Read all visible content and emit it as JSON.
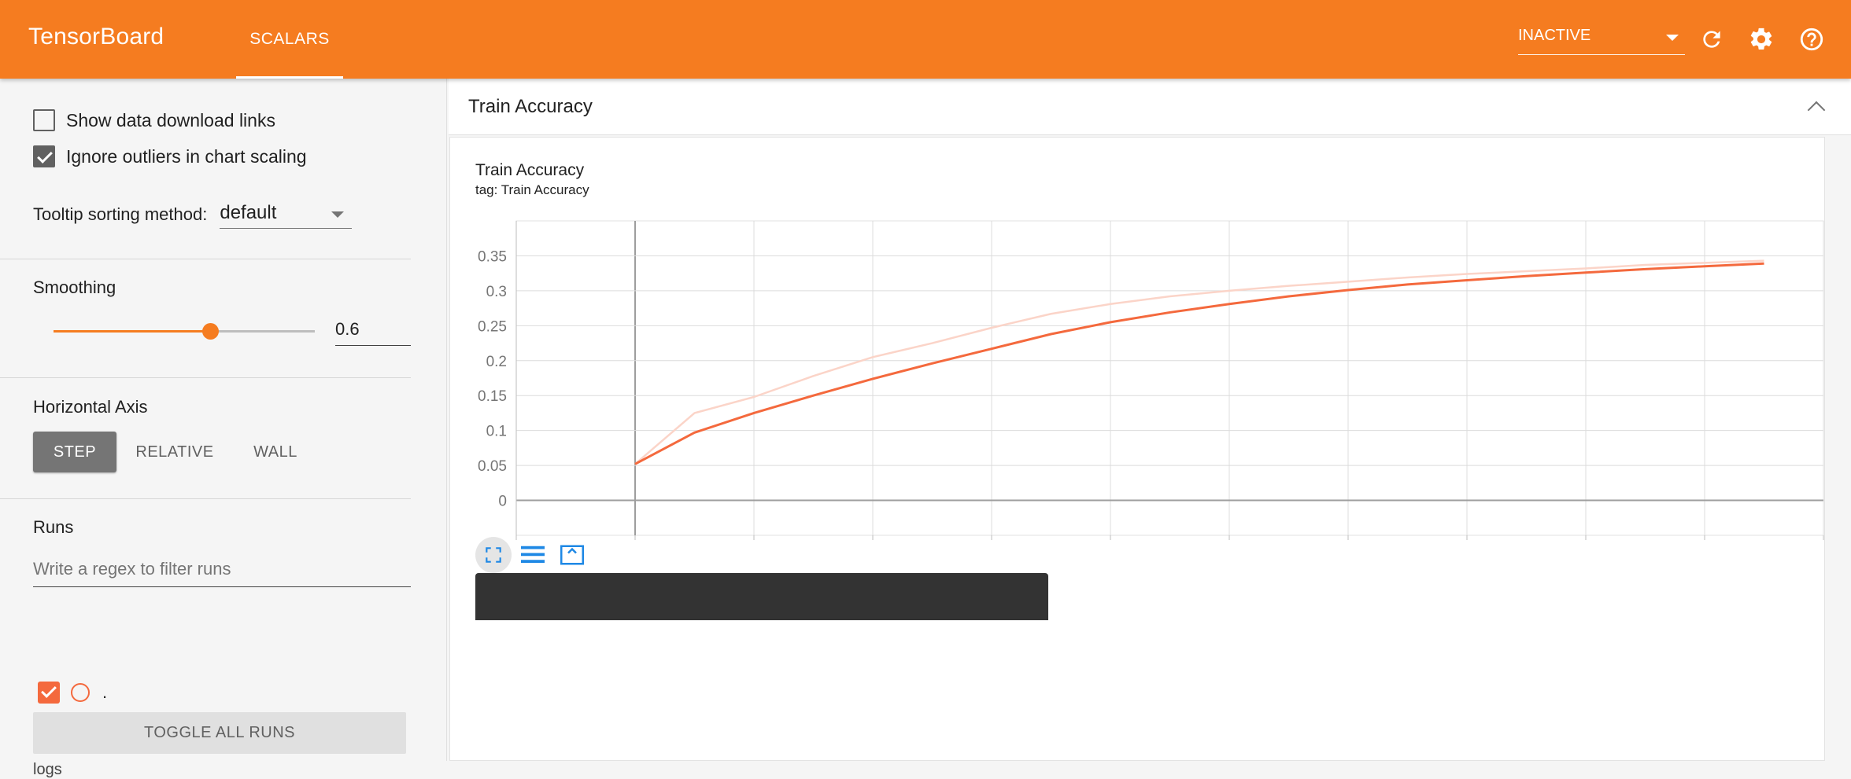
{
  "header": {
    "brand": "TensorBoard",
    "tab": "SCALARS",
    "status": "INACTIVE",
    "colors": {
      "bar": "#f57c20"
    }
  },
  "sidebar": {
    "download_links_label": "Show data download links",
    "download_links_checked": false,
    "ignore_outliers_label": "Ignore outliers in chart scaling",
    "ignore_outliers_checked": true,
    "tooltip_label": "Tooltip sorting method:",
    "tooltip_value": "default",
    "smoothing_label": "Smoothing",
    "smoothing_value": "0.6",
    "horizontal_axis_label": "Horizontal Axis",
    "axis_options": [
      "STEP",
      "RELATIVE",
      "WALL"
    ],
    "axis_selected": "STEP",
    "runs_label": "Runs",
    "regex_placeholder": "Write a regex to filter runs",
    "run_name": ".",
    "toggle_label": "TOGGLE ALL RUNS",
    "logdir": "logs"
  },
  "pane": {
    "title": "Train Accuracy"
  },
  "card": {
    "title": "Train Accuracy",
    "subtitle": "tag: Train Accuracy"
  },
  "chart_data": {
    "type": "line",
    "title": "Train Accuracy",
    "subtitle": "tag: Train Accuracy",
    "xlabel": "",
    "ylabel": "",
    "xlim": [
      -2,
      20
    ],
    "ylim": [
      -0.05,
      0.4
    ],
    "x_ticks": [
      0,
      2,
      4,
      6,
      8,
      10,
      12,
      14,
      16,
      18
    ],
    "y_ticks": [
      0,
      0.05,
      0.1,
      0.15,
      0.2,
      0.25,
      0.3,
      0.35
    ],
    "y_tick_labels": [
      "0",
      "0.05",
      "0.1",
      "0.15",
      "0.2",
      "0.25",
      "0.3",
      "0.35"
    ],
    "grid": true,
    "x": [
      0,
      1,
      2,
      3,
      4,
      5,
      6,
      7,
      8,
      9,
      10,
      11,
      12,
      13,
      14,
      15,
      16,
      17,
      18,
      19
    ],
    "series": [
      {
        "role": "raw",
        "color": "#fbd4c8",
        "values": [
          0.052,
          0.125,
          0.148,
          0.178,
          0.205,
          0.225,
          0.247,
          0.267,
          0.281,
          0.292,
          0.3,
          0.307,
          0.313,
          0.319,
          0.324,
          0.328,
          0.332,
          0.337,
          0.34,
          0.343
        ]
      },
      {
        "role": "smoothed",
        "color": "#f4693d",
        "values": [
          0.052,
          0.097,
          0.125,
          0.15,
          0.174,
          0.196,
          0.217,
          0.238,
          0.255,
          0.269,
          0.281,
          0.292,
          0.301,
          0.309,
          0.315,
          0.321,
          0.326,
          0.331,
          0.335,
          0.339
        ]
      }
    ]
  }
}
